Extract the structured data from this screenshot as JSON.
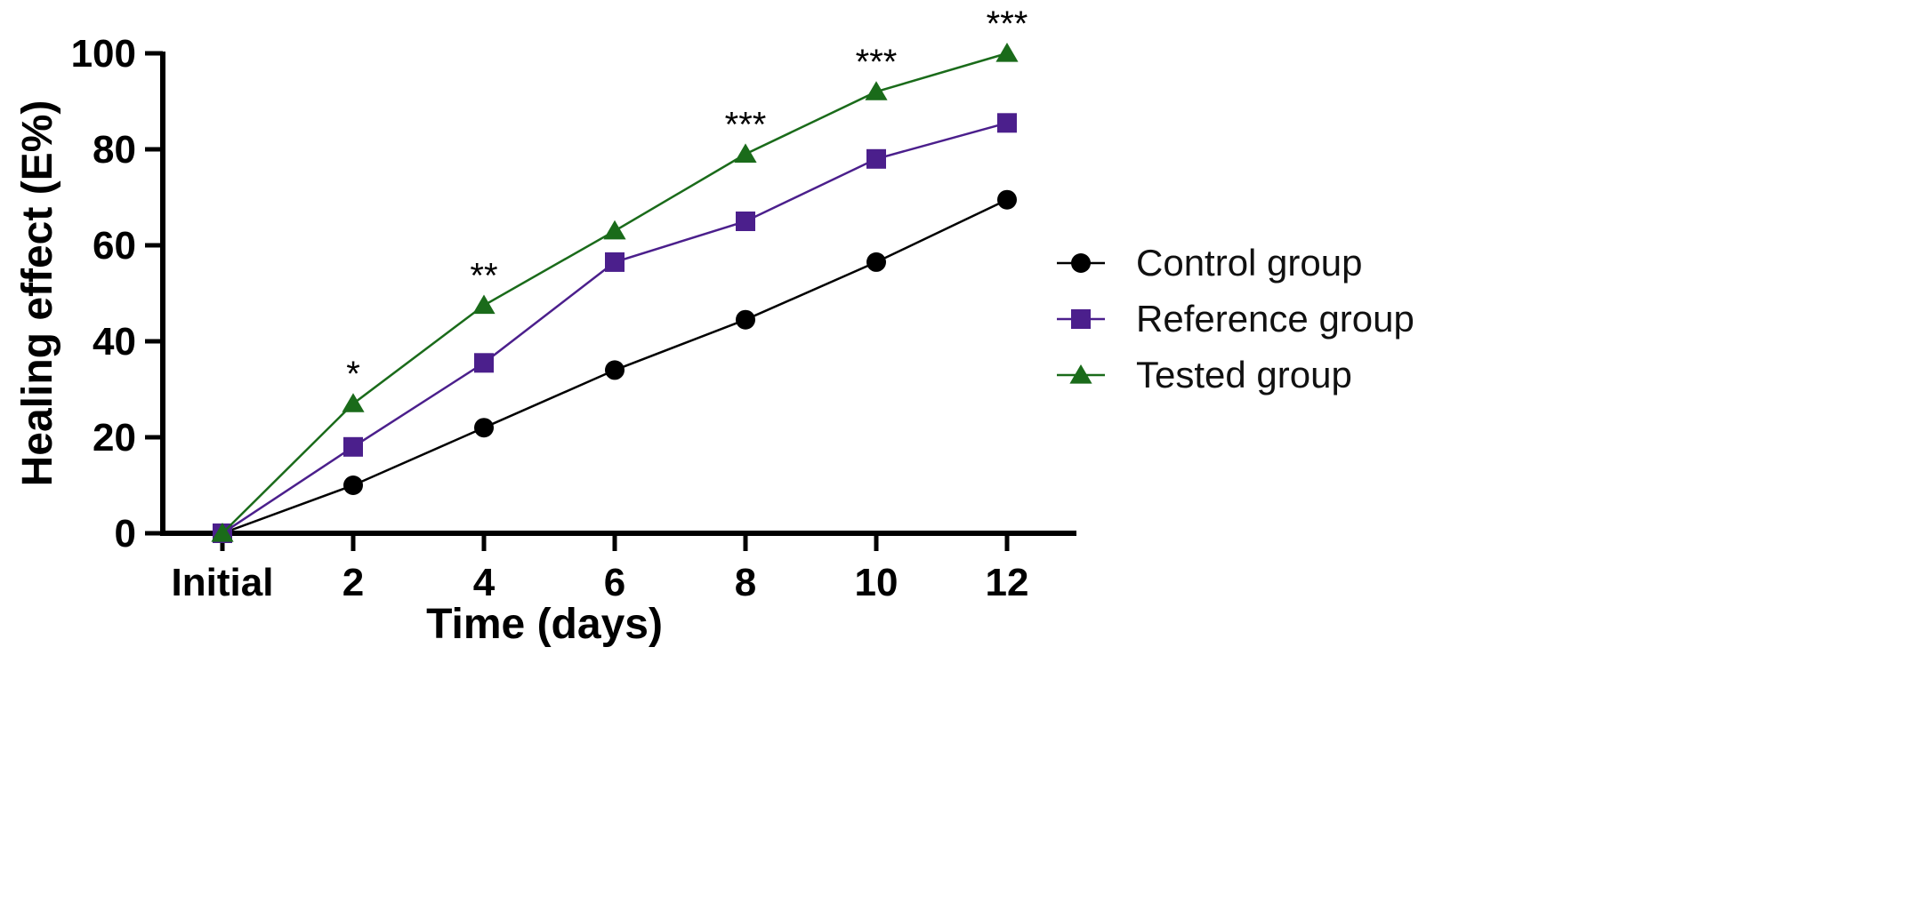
{
  "chart_data": {
    "type": "line",
    "title": "",
    "xlabel": "Time (days)",
    "ylabel": "Healing effect (E%)",
    "categories": [
      "Initial",
      "2",
      "4",
      "6",
      "8",
      "10",
      "12"
    ],
    "ylim": [
      0,
      100
    ],
    "yticks": [
      0,
      20,
      40,
      60,
      80,
      100
    ],
    "grid": false,
    "legend_position": "right",
    "series": [
      {
        "name": "Control group",
        "color": "#000000",
        "marker": "circle",
        "values": [
          0,
          10,
          22,
          34,
          44.5,
          56.5,
          69.5
        ]
      },
      {
        "name": "Reference group",
        "color": "#4B1F8C",
        "marker": "square",
        "values": [
          0,
          18,
          35.5,
          56.5,
          65,
          78,
          85.5
        ]
      },
      {
        "name": "Tested group",
        "color": "#1A6B1A",
        "marker": "triangle",
        "values": [
          0,
          27,
          47.5,
          63,
          79,
          92,
          100
        ]
      }
    ],
    "annotations": [
      {
        "category": "2",
        "text": "*"
      },
      {
        "category": "4",
        "text": "**"
      },
      {
        "category": "8",
        "text": "***"
      },
      {
        "category": "10",
        "text": "***"
      },
      {
        "category": "12",
        "text": "***"
      }
    ]
  }
}
